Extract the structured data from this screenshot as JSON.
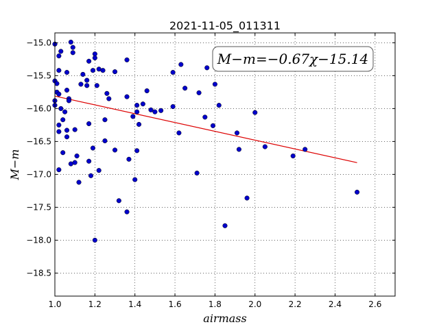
{
  "chart_data": {
    "type": "scatter",
    "title": "2021-11-05_011311",
    "xlabel": "airmass",
    "ylabel": "M−m",
    "xlim": [
      1.0,
      2.7
    ],
    "ylim": [
      -18.85,
      -14.85
    ],
    "y_inverted": true,
    "grid": true,
    "xticks": [
      1.0,
      1.2,
      1.4,
      1.6,
      1.8,
      2.0,
      2.2,
      2.4,
      2.6
    ],
    "xtick_labels": [
      "1.0",
      "1.2",
      "1.4",
      "1.6",
      "1.8",
      "2.0",
      "2.2",
      "2.4",
      "2.6"
    ],
    "yticks": [
      -15.0,
      -15.5,
      -16.0,
      -16.5,
      -17.0,
      -17.5,
      -18.0,
      -18.5
    ],
    "ytick_labels": [
      "−15.0",
      "−15.5",
      "−16.0",
      "−16.5",
      "−17.0",
      "−17.5",
      "−18.0",
      "−18.5"
    ],
    "annotation": "M−m=−0.67χ−15.14",
    "marker_color": "#0000cc",
    "line_color": "#dd0000",
    "fit": {
      "slope": -0.67,
      "intercept": -15.14,
      "x_range": [
        1.0,
        2.51
      ]
    },
    "points": [
      [
        1.0,
        -15.02
      ],
      [
        1.0,
        -15.58
      ],
      [
        1.01,
        -15.62
      ],
      [
        1.01,
        -15.75
      ],
      [
        1.0,
        -15.88
      ],
      [
        1.0,
        -15.95
      ],
      [
        1.02,
        -15.78
      ],
      [
        1.03,
        -15.13
      ],
      [
        1.02,
        -15.2
      ],
      [
        1.02,
        -15.42
      ],
      [
        1.03,
        -16.0
      ],
      [
        1.05,
        -16.05
      ],
      [
        1.02,
        -16.25
      ],
      [
        1.04,
        -16.17
      ],
      [
        1.02,
        -16.35
      ],
      [
        1.06,
        -16.33
      ],
      [
        1.04,
        -16.67
      ],
      [
        1.06,
        -16.43
      ],
      [
        1.02,
        -16.93
      ],
      [
        1.06,
        -15.45
      ],
      [
        1.06,
        -15.72
      ],
      [
        1.07,
        -15.85
      ],
      [
        1.07,
        -15.88
      ],
      [
        1.08,
        -14.99
      ],
      [
        1.09,
        -15.07
      ],
      [
        1.09,
        -15.15
      ],
      [
        1.1,
        -16.32
      ],
      [
        1.08,
        -16.84
      ],
      [
        1.1,
        -16.82
      ],
      [
        1.11,
        -16.72
      ],
      [
        1.12,
        -17.12
      ],
      [
        1.13,
        -15.63
      ],
      [
        1.14,
        -15.48
      ],
      [
        1.16,
        -15.57
      ],
      [
        1.16,
        -15.65
      ],
      [
        1.17,
        -15.28
      ],
      [
        1.17,
        -16.23
      ],
      [
        1.17,
        -16.8
      ],
      [
        1.18,
        -17.02
      ],
      [
        1.19,
        -15.42
      ],
      [
        1.2,
        -15.17
      ],
      [
        1.2,
        -15.23
      ],
      [
        1.21,
        -15.65
      ],
      [
        1.22,
        -15.4
      ],
      [
        1.24,
        -15.42
      ],
      [
        1.19,
        -16.6
      ],
      [
        1.22,
        -16.94
      ],
      [
        1.25,
        -16.17
      ],
      [
        1.25,
        -16.49
      ],
      [
        1.26,
        -15.77
      ],
      [
        1.27,
        -15.85
      ],
      [
        1.2,
        -18.0
      ],
      [
        1.3,
        -15.44
      ],
      [
        1.3,
        -16.63
      ],
      [
        1.32,
        -17.4
      ],
      [
        1.36,
        -15.26
      ],
      [
        1.36,
        -15.82
      ],
      [
        1.36,
        -17.57
      ],
      [
        1.37,
        -16.77
      ],
      [
        1.39,
        -16.12
      ],
      [
        1.41,
        -15.95
      ],
      [
        1.41,
        -16.05
      ],
      [
        1.41,
        -16.64
      ],
      [
        1.4,
        -17.08
      ],
      [
        1.42,
        -16.24
      ],
      [
        1.44,
        -15.93
      ],
      [
        1.46,
        -15.73
      ],
      [
        1.48,
        -16.02
      ],
      [
        1.5,
        -16.05
      ],
      [
        1.53,
        -16.03
      ],
      [
        1.59,
        -15.45
      ],
      [
        1.59,
        -15.97
      ],
      [
        1.62,
        -16.37
      ],
      [
        1.63,
        -15.33
      ],
      [
        1.65,
        -15.69
      ],
      [
        1.71,
        -16.98
      ],
      [
        1.72,
        -15.76
      ],
      [
        1.75,
        -16.13
      ],
      [
        1.76,
        -15.38
      ],
      [
        1.79,
        -16.26
      ],
      [
        1.8,
        -15.63
      ],
      [
        1.82,
        -15.95
      ],
      [
        1.85,
        -17.78
      ],
      [
        1.91,
        -16.37
      ],
      [
        1.92,
        -16.62
      ],
      [
        1.96,
        -17.36
      ],
      [
        2.0,
        -16.06
      ],
      [
        2.05,
        -16.58
      ],
      [
        2.19,
        -16.72
      ],
      [
        2.25,
        -16.62
      ],
      [
        2.51,
        -17.27
      ]
    ]
  }
}
